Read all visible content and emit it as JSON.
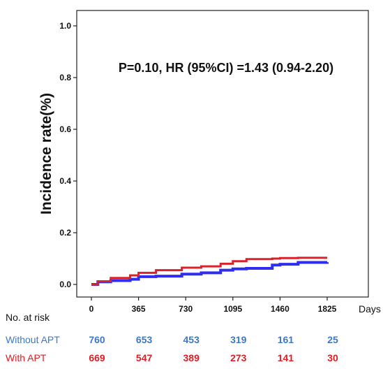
{
  "chart_data": {
    "type": "line",
    "ylabel": "Incidence rate(%)",
    "xlabel": "Days",
    "annotation": "P=0.10, HR (95%CI) =1.43 (0.94-2.20)",
    "xlim": [
      0,
      1825
    ],
    "ylim": [
      0,
      1.0
    ],
    "x_ticks": [
      0,
      365,
      730,
      1095,
      1460,
      1825
    ],
    "y_ticks": [
      "0.0",
      "0.2",
      "0.4",
      "0.6",
      "0.8",
      "1.0"
    ],
    "y_tick_values": [
      0.0,
      0.2,
      0.4,
      0.6,
      0.8,
      1.0
    ],
    "grid": false,
    "series": [
      {
        "name": "Without APT",
        "color": "#2e2ef0",
        "x": [
          0,
          50,
          150,
          300,
          365,
          500,
          700,
          850,
          1000,
          1095,
          1200,
          1400,
          1460,
          1600,
          1825
        ],
        "y": [
          0.0,
          0.01,
          0.015,
          0.02,
          0.03,
          0.032,
          0.04,
          0.045,
          0.055,
          0.06,
          0.062,
          0.075,
          0.078,
          0.085,
          0.086
        ]
      },
      {
        "name": "With APT",
        "color": "#d8232a",
        "x": [
          0,
          50,
          150,
          300,
          365,
          500,
          700,
          850,
          1000,
          1095,
          1200,
          1400,
          1460,
          1600,
          1825
        ],
        "y": [
          0.0,
          0.012,
          0.025,
          0.035,
          0.045,
          0.055,
          0.065,
          0.07,
          0.08,
          0.09,
          0.098,
          0.1,
          0.102,
          0.103,
          0.103
        ]
      }
    ]
  },
  "risk_table": {
    "header": "No. at risk",
    "rows": [
      {
        "label": "Without APT",
        "color": "#3f78c6",
        "values": [
          "760",
          "653",
          "453",
          "319",
          "161",
          "25"
        ]
      },
      {
        "label": "With APT",
        "color": "#e11d25",
        "values": [
          "669",
          "547",
          "389",
          "273",
          "141",
          "30"
        ]
      }
    ]
  }
}
